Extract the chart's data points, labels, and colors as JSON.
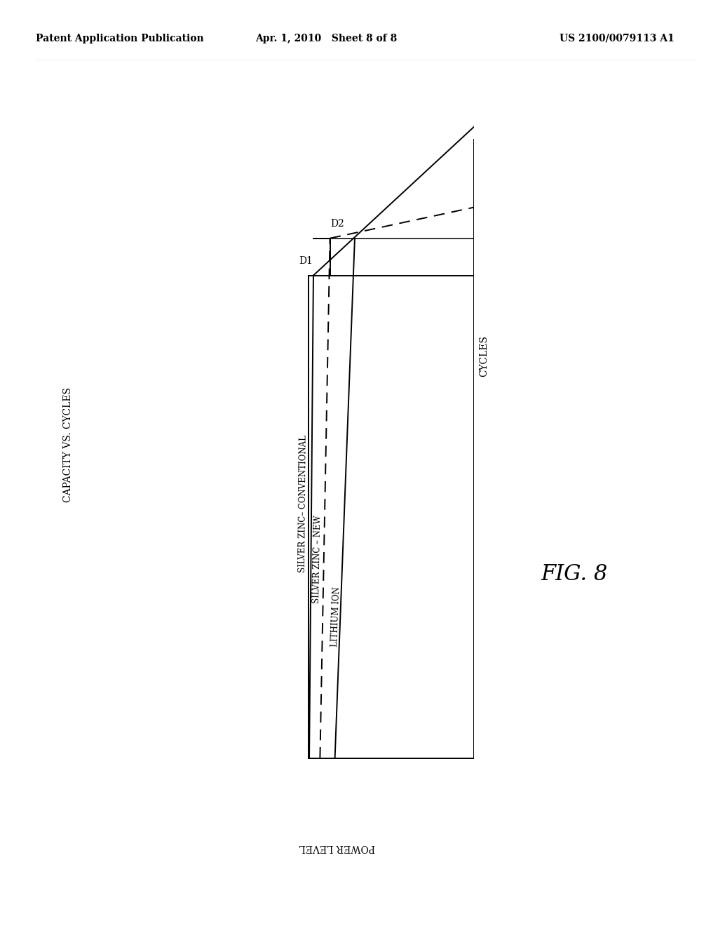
{
  "background_color": "#ffffff",
  "header_left": "Patent Application Publication",
  "header_center": "Apr. 1, 2010   Sheet 8 of 8",
  "header_right": "US 2100/0079113 A1",
  "capacity_cycles_label": "CAPACITY VS. CYCLES",
  "power_level_label": "POWER LEVEL",
  "cycles_label": "CYCLES",
  "fig_label": "FIG. 8",
  "D1_label": "D1",
  "D2_label": "D2",
  "sz_conv_label": "SILVER ZINC– CONVENTIONAL",
  "sz_new_label": "SILVER ZINC – NEW",
  "li_ion_label": "LITHIUM ION",
  "line_lw": 1.4
}
